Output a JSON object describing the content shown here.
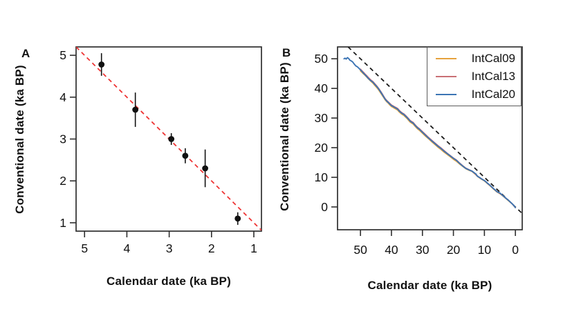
{
  "figure": {
    "background": "#ffffff",
    "axis_color": "#2e2e2e",
    "panels": [
      {
        "letter": "A"
      },
      {
        "letter": "B"
      }
    ]
  },
  "chart_data": [
    {
      "type": "scatter",
      "panel": "A",
      "title": "",
      "xlabel": "Calendar date (ka BP)",
      "ylabel": "Conventional date (ka BP)",
      "xlim": [
        5.2,
        0.82
      ],
      "ylim": [
        0.8,
        5.2
      ],
      "x_reversed": true,
      "grid": false,
      "x_ticks": [
        5,
        4,
        3,
        2,
        1
      ],
      "y_ticks": [
        1,
        2,
        3,
        4,
        5
      ],
      "point_color": "#111111",
      "points": [
        {
          "x": 4.6,
          "y": 4.78,
          "err": 0.27
        },
        {
          "x": 3.8,
          "y": 3.7,
          "err": 0.41
        },
        {
          "x": 2.95,
          "y": 3.0,
          "err": 0.14
        },
        {
          "x": 2.62,
          "y": 2.6,
          "err": 0.18
        },
        {
          "x": 2.15,
          "y": 2.3,
          "err": 0.45
        },
        {
          "x": 1.38,
          "y": 1.1,
          "err": 0.15
        }
      ],
      "identity_line": {
        "style": "dashed",
        "color": "#ee3333",
        "meaning": "1:1 line"
      }
    },
    {
      "type": "line",
      "panel": "B",
      "title": "",
      "xlabel": "Calendar date (ka BP)",
      "ylabel": "Conventional date (ka BP)",
      "xlim": [
        57.4,
        -2.2
      ],
      "ylim": [
        -7.7,
        54.0
      ],
      "x_reversed": true,
      "grid": false,
      "x_ticks": [
        50,
        40,
        30,
        20,
        10,
        0
      ],
      "y_ticks": [
        0,
        10,
        20,
        30,
        40,
        50
      ],
      "legend_position": "top-right",
      "identity_line": {
        "style": "dashed",
        "color": "#1a1a1a",
        "meaning": "1:1 line"
      },
      "series": [
        {
          "name": "IntCal09",
          "color": "#E6A23C",
          "points": [
            [
              50,
              45.9
            ],
            [
              49.5,
              45.4
            ],
            [
              49,
              44.9
            ],
            [
              48.5,
              44.4
            ],
            [
              48,
              43.9
            ],
            [
              47.5,
              43.3
            ],
            [
              47,
              42.8
            ],
            [
              46.5,
              42.3
            ],
            [
              46,
              41.8
            ],
            [
              45.5,
              41.2
            ],
            [
              45,
              40.6
            ],
            [
              44.5,
              40.0
            ],
            [
              44,
              39.3
            ],
            [
              43.5,
              38.5
            ],
            [
              43,
              37.7
            ],
            [
              42.5,
              36.9
            ],
            [
              42,
              36.1
            ],
            [
              41.5,
              35.5
            ],
            [
              41,
              35.0
            ],
            [
              40.5,
              34.4
            ],
            [
              40,
              33.9
            ],
            [
              39.5,
              33.6
            ],
            [
              39,
              33.3
            ],
            [
              38.5,
              33.0
            ],
            [
              38,
              32.7
            ],
            [
              37.5,
              32.1
            ],
            [
              37,
              31.6
            ],
            [
              36.5,
              31.2
            ],
            [
              36,
              30.9
            ],
            [
              35.5,
              30.4
            ],
            [
              35,
              29.9
            ],
            [
              34.5,
              29.3
            ],
            [
              34,
              28.7
            ],
            [
              33.5,
              28.3
            ],
            [
              33,
              28.0
            ],
            [
              32.5,
              27.4
            ],
            [
              32,
              26.8
            ],
            [
              31.5,
              26.3
            ],
            [
              31,
              25.9
            ],
            [
              30.5,
              25.4
            ],
            [
              30,
              24.9
            ],
            [
              29,
              23.9
            ],
            [
              28,
              23.0
            ],
            [
              27,
              22.0
            ],
            [
              26,
              21.1
            ],
            [
              25,
              20.2
            ],
            [
              24,
              19.4
            ],
            [
              23,
              18.5
            ],
            [
              22,
              17.7
            ],
            [
              21,
              16.9
            ],
            [
              20,
              16.1
            ],
            [
              19,
              15.4
            ],
            [
              18,
              14.5
            ],
            [
              17,
              13.7
            ],
            [
              16,
              12.9
            ],
            [
              15,
              12.4
            ],
            [
              14,
              12.0
            ],
            [
              13,
              11.1
            ],
            [
              12,
              10.1
            ],
            [
              11,
              9.4
            ],
            [
              10,
              8.8
            ],
            [
              9,
              7.9
            ],
            [
              8,
              7.0
            ],
            [
              7,
              6.0
            ],
            [
              6,
              5.1
            ],
            [
              5,
              4.5
            ],
            [
              4,
              3.7
            ],
            [
              3,
              2.8
            ],
            [
              2,
              1.9
            ],
            [
              1,
              1.0
            ],
            [
              0,
              -0.2
            ]
          ]
        },
        {
          "name": "IntCal13",
          "color": "#C96F74",
          "points": [
            [
              50,
              46.5
            ],
            [
              49.5,
              45.9
            ],
            [
              49,
              45.4
            ],
            [
              48.5,
              44.8
            ],
            [
              48,
              44.3
            ],
            [
              47.5,
              43.7
            ],
            [
              47,
              43.2
            ],
            [
              46.5,
              42.7
            ],
            [
              46,
              42.3
            ],
            [
              45.5,
              41.7
            ],
            [
              45,
              41.1
            ],
            [
              44.5,
              40.5
            ],
            [
              44,
              39.8
            ],
            [
              43.5,
              39.0
            ],
            [
              43,
              38.2
            ],
            [
              42.5,
              37.3
            ],
            [
              42,
              36.5
            ],
            [
              41.5,
              35.9
            ],
            [
              41,
              35.4
            ],
            [
              40.5,
              34.9
            ],
            [
              40,
              34.4
            ],
            [
              39.5,
              34.1
            ],
            [
              39,
              33.8
            ],
            [
              38.5,
              33.5
            ],
            [
              38,
              33.2
            ],
            [
              37.5,
              32.6
            ],
            [
              37,
              32.1
            ],
            [
              36.5,
              31.7
            ],
            [
              36,
              31.4
            ],
            [
              35.5,
              30.9
            ],
            [
              35,
              30.4
            ],
            [
              34.5,
              29.8
            ],
            [
              34,
              29.2
            ],
            [
              33.5,
              28.8
            ],
            [
              33,
              28.5
            ],
            [
              32.5,
              27.9
            ],
            [
              32,
              27.3
            ],
            [
              31.5,
              26.8
            ],
            [
              31,
              26.4
            ],
            [
              30.5,
              25.9
            ],
            [
              30,
              25.4
            ],
            [
              29,
              24.4
            ],
            [
              28,
              23.4
            ],
            [
              27,
              22.5
            ],
            [
              26,
              21.6
            ],
            [
              25,
              20.7
            ],
            [
              24,
              19.9
            ],
            [
              23,
              19.0
            ],
            [
              22,
              18.1
            ],
            [
              21,
              17.3
            ],
            [
              20,
              16.5
            ],
            [
              19,
              15.8
            ],
            [
              18,
              14.8
            ],
            [
              17,
              13.9
            ],
            [
              16,
              13.1
            ],
            [
              15,
              12.6
            ],
            [
              14,
              12.1
            ],
            [
              13,
              11.2
            ],
            [
              12,
              10.2
            ],
            [
              11,
              9.5
            ],
            [
              10,
              8.9
            ],
            [
              9,
              8.0
            ],
            [
              8,
              7.1
            ],
            [
              7,
              6.1
            ],
            [
              6,
              5.2
            ],
            [
              5,
              4.6
            ],
            [
              4,
              3.8
            ],
            [
              3,
              2.9
            ],
            [
              2,
              2.0
            ],
            [
              1,
              1.0
            ],
            [
              0,
              -0.2
            ]
          ]
        },
        {
          "name": "IntCal20",
          "color": "#3B74B4",
          "points": [
            [
              55.3,
              50.0
            ],
            [
              55,
              50.2
            ],
            [
              54.6,
              49.9
            ],
            [
              54.2,
              50.4
            ],
            [
              53.8,
              50.1
            ],
            [
              53.4,
              49.5
            ],
            [
              53,
              49.3
            ],
            [
              52.5,
              48.9
            ],
            [
              52,
              48.2
            ],
            [
              51.5,
              47.6
            ],
            [
              51,
              47.3
            ],
            [
              50.5,
              46.8
            ],
            [
              50,
              46.2
            ],
            [
              49.5,
              45.7
            ],
            [
              49,
              45.1
            ],
            [
              48.5,
              44.6
            ],
            [
              48,
              44.0
            ],
            [
              47.5,
              43.4
            ],
            [
              47,
              42.9
            ],
            [
              46.5,
              42.5
            ],
            [
              46,
              42.1
            ],
            [
              45.5,
              41.5
            ],
            [
              45,
              40.9
            ],
            [
              44.5,
              40.3
            ],
            [
              44,
              39.6
            ],
            [
              43.5,
              38.8
            ],
            [
              43,
              38.0
            ],
            [
              42.5,
              37.1
            ],
            [
              42,
              36.3
            ],
            [
              41.5,
              35.7
            ],
            [
              41,
              35.2
            ],
            [
              40.5,
              34.7
            ],
            [
              40,
              34.2
            ],
            [
              39.5,
              33.9
            ],
            [
              39,
              33.6
            ],
            [
              38.5,
              33.3
            ],
            [
              38,
              33.0
            ],
            [
              37.5,
              32.4
            ],
            [
              37,
              31.9
            ],
            [
              36.5,
              31.5
            ],
            [
              36,
              31.2
            ],
            [
              35.5,
              30.7
            ],
            [
              35,
              30.2
            ],
            [
              34.5,
              29.6
            ],
            [
              34,
              29.0
            ],
            [
              33.5,
              28.6
            ],
            [
              33,
              28.3
            ],
            [
              32.5,
              27.7
            ],
            [
              32,
              27.1
            ],
            [
              31.5,
              26.6
            ],
            [
              31,
              26.2
            ],
            [
              30.5,
              25.7
            ],
            [
              30,
              25.2
            ],
            [
              29,
              24.2
            ],
            [
              28,
              23.2
            ],
            [
              27,
              22.3
            ],
            [
              26,
              21.4
            ],
            [
              25,
              20.5
            ],
            [
              24,
              19.7
            ],
            [
              23,
              18.8
            ],
            [
              22,
              18.0
            ],
            [
              21,
              17.2
            ],
            [
              20,
              16.4
            ],
            [
              19,
              15.7
            ],
            [
              18,
              14.7
            ],
            [
              17,
              13.8
            ],
            [
              16,
              13.0
            ],
            [
              15,
              12.5
            ],
            [
              14,
              12.1
            ],
            [
              13.5,
              11.7
            ],
            [
              13,
              11.3
            ],
            [
              12.7,
              11.1
            ],
            [
              12.4,
              10.5
            ],
            [
              12,
              10.2
            ],
            [
              11.5,
              9.9
            ],
            [
              11,
              9.5
            ],
            [
              10.5,
              9.2
            ],
            [
              10,
              8.9
            ],
            [
              9.5,
              8.5
            ],
            [
              9,
              8.0
            ],
            [
              8.5,
              7.6
            ],
            [
              8,
              7.1
            ],
            [
              7.5,
              6.6
            ],
            [
              7,
              6.1
            ],
            [
              6.5,
              5.7
            ],
            [
              6,
              5.2
            ],
            [
              5.5,
              4.9
            ],
            [
              5,
              4.7
            ],
            [
              4,
              3.8
            ],
            [
              3,
              2.9
            ],
            [
              2,
              2.0
            ],
            [
              1,
              1.0
            ],
            [
              0.5,
              0.5
            ],
            [
              0,
              -0.2
            ]
          ]
        }
      ]
    }
  ]
}
